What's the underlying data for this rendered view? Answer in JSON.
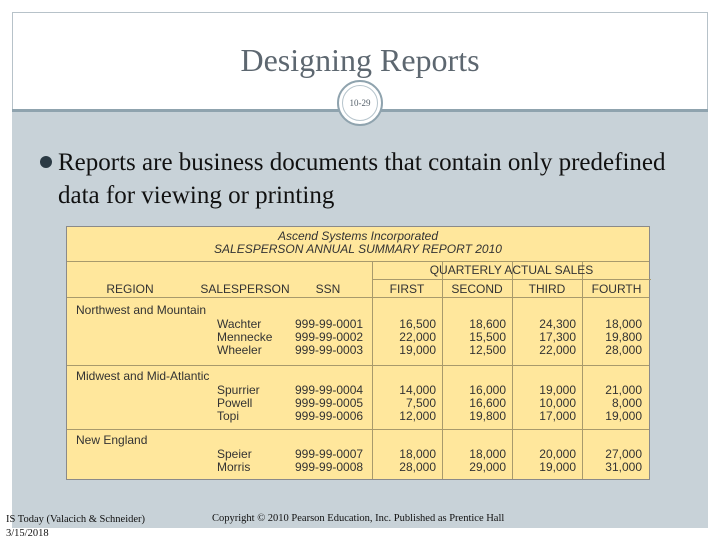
{
  "slide": {
    "title": "Designing Reports",
    "slide_number": "10-29",
    "bullet": "Reports are business documents that contain only predefined data for viewing or printing"
  },
  "report": {
    "company": "Ascend Systems Incorporated",
    "title": "SALESPERSON ANNUAL SUMMARY REPORT 2010",
    "group_header": "QUARTERLY ACTUAL SALES",
    "columns": [
      "REGION",
      "SALESPERSON",
      "SSN",
      "FIRST",
      "SECOND",
      "THIRD",
      "FOURTH"
    ],
    "regions": [
      {
        "name": "Northwest and Mountain",
        "rows": [
          {
            "salesperson": "Wachter",
            "ssn": "999-99-0001",
            "q1": "16,500",
            "q2": "18,600",
            "q3": "24,300",
            "q4": "18,000"
          },
          {
            "salesperson": "Mennecke",
            "ssn": "999-99-0002",
            "q1": "22,000",
            "q2": "15,500",
            "q3": "17,300",
            "q4": "19,800"
          },
          {
            "salesperson": "Wheeler",
            "ssn": "999-99-0003",
            "q1": "19,000",
            "q2": "12,500",
            "q3": "22,000",
            "q4": "28,000"
          }
        ]
      },
      {
        "name": "Midwest and Mid-Atlantic",
        "rows": [
          {
            "salesperson": "Spurrier",
            "ssn": "999-99-0004",
            "q1": "14,000",
            "q2": "16,000",
            "q3": "19,000",
            "q4": "21,000"
          },
          {
            "salesperson": "Powell",
            "ssn": "999-99-0005",
            "q1": "7,500",
            "q2": "16,600",
            "q3": "10,000",
            "q4": "8,000"
          },
          {
            "salesperson": "Topi",
            "ssn": "999-99-0006",
            "q1": "12,000",
            "q2": "19,800",
            "q3": "17,000",
            "q4": "19,000"
          }
        ]
      },
      {
        "name": "New England",
        "rows": [
          {
            "salesperson": "Speier",
            "ssn": "999-99-0007",
            "q1": "18,000",
            "q2": "18,000",
            "q3": "20,000",
            "q4": "27,000"
          },
          {
            "salesperson": "Morris",
            "ssn": "999-99-0008",
            "q1": "28,000",
            "q2": "29,000",
            "q3": "19,000",
            "q4": "31,000"
          }
        ]
      }
    ]
  },
  "footer": {
    "book": "IS Today (Valacich & Schneider)",
    "date": "3/15/2018",
    "copyright": "Copyright © 2010 Pearson Education, Inc. Published as Prentice Hall"
  },
  "colors": {
    "report_bg": "#ffe79c",
    "band": "#c8d2d8",
    "title_text": "#5d6770"
  }
}
